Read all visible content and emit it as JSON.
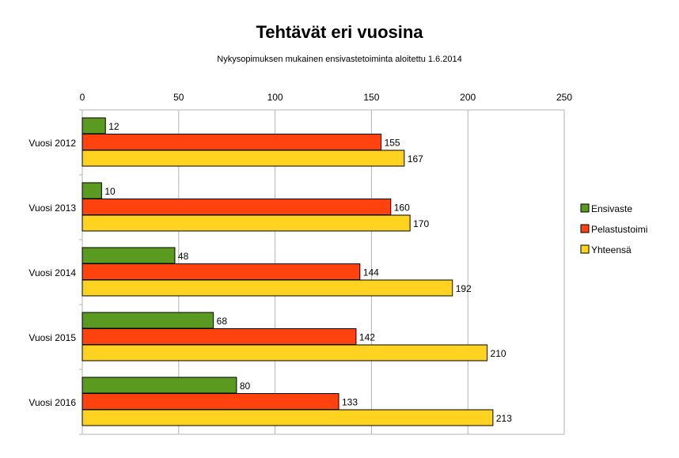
{
  "chart_data": {
    "type": "bar",
    "orientation": "horizontal",
    "title": "Tehtävät eri vuosina",
    "subtitle": "Nykysopimuksen mukainen ensivastetoiminta aloitettu 1.6.2014",
    "categories": [
      "Vuosi 2012",
      "Vuosi 2013",
      "Vuosi 2014",
      "Vuosi 2015",
      "Vuosi 2016"
    ],
    "series": [
      {
        "name": "Ensivaste",
        "color": "#5b9a21",
        "values": [
          12,
          10,
          48,
          68,
          80
        ]
      },
      {
        "name": "Pelastustoimi",
        "color": "#ff420e",
        "values": [
          155,
          160,
          144,
          142,
          133
        ]
      },
      {
        "name": "Yhteensä",
        "color": "#ffd320",
        "values": [
          167,
          170,
          192,
          210,
          213
        ]
      }
    ],
    "xlim": [
      0,
      250
    ],
    "x_ticks": [
      "0",
      "50",
      "100",
      "150",
      "200",
      "250"
    ],
    "x_axis_position": "top",
    "grid": true,
    "legend": "right",
    "data_labels": true
  }
}
